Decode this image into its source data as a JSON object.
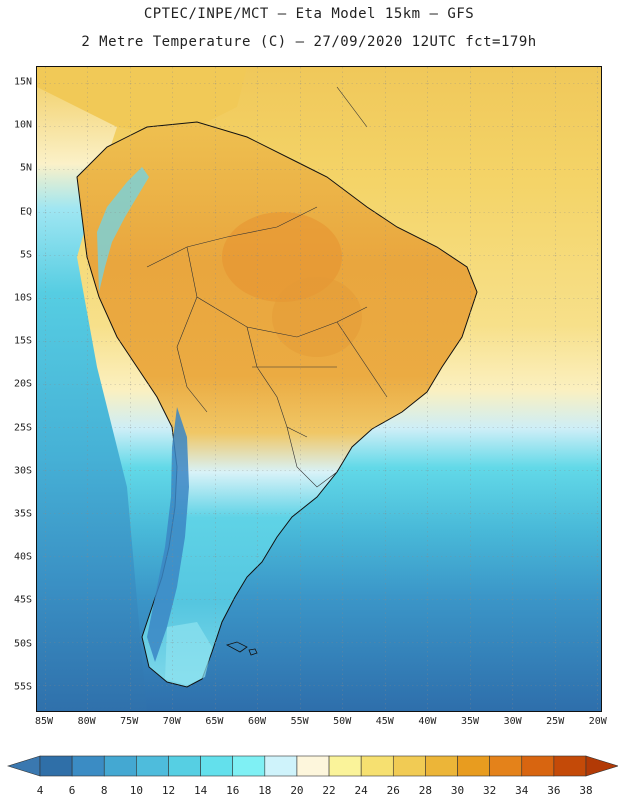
{
  "header": {
    "line1": "CPTEC/INPE/MCT –  Eta Model 15km – GFS",
    "line2": "2 Metre Temperature (C) – 27/09/2020 12UTC fct=179h"
  },
  "axes": {
    "lat_labels": [
      "15N",
      "10N",
      "5N",
      "EQ",
      "5S",
      "10S",
      "15S",
      "20S",
      "25S",
      "30S",
      "35S",
      "40S",
      "45S",
      "50S",
      "55S"
    ],
    "lon_labels": [
      "85W",
      "80W",
      "75W",
      "70W",
      "65W",
      "60W",
      "55W",
      "50W",
      "45W",
      "40W",
      "35W",
      "30W",
      "25W",
      "20W"
    ]
  },
  "colorbar": {
    "ticks": [
      "4",
      "6",
      "8",
      "10",
      "12",
      "14",
      "16",
      "18",
      "20",
      "22",
      "24",
      "26",
      "28",
      "30",
      "32",
      "34",
      "36",
      "38"
    ],
    "colors": [
      "#3a78b0",
      "#2f6fa8",
      "#3b8cc4",
      "#44a8d2",
      "#4ebcdc",
      "#56cfe3",
      "#63e0ec",
      "#7ff0f4",
      "#cff3fb",
      "#fdf6dc",
      "#faf39a",
      "#f6e070",
      "#f1cb54",
      "#ecb538",
      "#e89c1f",
      "#e4821a",
      "#d86510",
      "#c44a08",
      "#b23a06"
    ]
  },
  "colors": {
    "ocean_north": "#f2cf5c",
    "ocean_mid": "#fbeeb4",
    "ocean_south_cold": "#2f71ad",
    "land_hot": "#e9a43a",
    "andes_cold": "#3b86c4"
  }
}
